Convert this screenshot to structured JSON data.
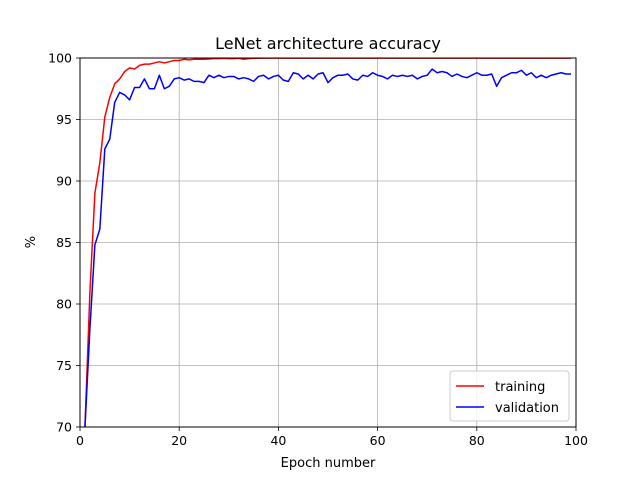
{
  "chart_data": {
    "type": "line",
    "title": "LeNet architecture accuracy",
    "xlabel": "Epoch number",
    "ylabel": "%",
    "xlim": [
      0,
      100
    ],
    "ylim": [
      70,
      100
    ],
    "xticks": [
      0,
      20,
      40,
      60,
      80,
      100
    ],
    "yticks": [
      70,
      75,
      80,
      85,
      90,
      95,
      100
    ],
    "grid": true,
    "legend_position": "lower-right",
    "x": [
      1,
      2,
      3,
      4,
      5,
      6,
      7,
      8,
      9,
      10,
      11,
      12,
      13,
      14,
      15,
      16,
      17,
      18,
      19,
      20,
      21,
      22,
      23,
      24,
      25,
      26,
      27,
      28,
      29,
      30,
      31,
      32,
      33,
      34,
      35,
      36,
      37,
      38,
      39,
      40,
      41,
      42,
      43,
      44,
      45,
      46,
      47,
      48,
      49,
      50,
      51,
      52,
      53,
      54,
      55,
      56,
      57,
      58,
      59,
      60,
      61,
      62,
      63,
      64,
      65,
      66,
      67,
      68,
      69,
      70,
      71,
      72,
      73,
      74,
      75,
      76,
      77,
      78,
      79,
      80,
      81,
      82,
      83,
      84,
      85,
      86,
      87,
      88,
      89,
      90,
      91,
      92,
      93,
      94,
      95,
      96,
      97,
      98,
      99
    ],
    "series": [
      {
        "name": "training",
        "color": "#ff0000",
        "values": [
          70,
          81,
          89,
          91.5,
          95.2,
          96.8,
          97.9,
          98.3,
          98.9,
          99.2,
          99.1,
          99.4,
          99.5,
          99.5,
          99.6,
          99.7,
          99.6,
          99.7,
          99.8,
          99.8,
          99.9,
          99.85,
          99.9,
          99.9,
          99.9,
          99.92,
          99.95,
          99.95,
          99.97,
          99.95,
          99.95,
          99.98,
          99.9,
          99.95,
          99.98,
          99.98,
          99.99,
          99.99,
          99.99,
          99.99,
          99.99,
          99.99,
          99.99,
          99.99,
          99.99,
          99.99,
          99.99,
          99.99,
          99.99,
          99.99,
          99.99,
          99.99,
          99.99,
          99.99,
          99.99,
          99.99,
          99.99,
          99.99,
          99.99,
          99.99,
          99.99,
          99.99,
          99.99,
          99.99,
          99.99,
          99.99,
          99.99,
          99.99,
          99.99,
          99.99,
          99.99,
          99.99,
          99.99,
          99.99,
          99.99,
          99.99,
          99.99,
          99.99,
          99.99,
          99.99,
          99.99,
          99.99,
          99.99,
          99.99,
          99.99,
          99.99,
          99.99,
          99.99,
          99.99,
          99.99,
          99.99,
          99.99,
          99.99,
          99.99,
          99.99,
          99.99,
          99.99,
          99.99,
          99.99
        ]
      },
      {
        "name": "validation",
        "color": "#0000ff",
        "values": [
          70,
          78,
          84.8,
          86.1,
          92.6,
          93.4,
          96.4,
          97.2,
          97.0,
          96.6,
          97.6,
          97.6,
          98.3,
          97.5,
          97.5,
          98.6,
          97.5,
          97.7,
          98.3,
          98.4,
          98.2,
          98.3,
          98.1,
          98.1,
          98.0,
          98.6,
          98.4,
          98.6,
          98.4,
          98.5,
          98.5,
          98.3,
          98.4,
          98.3,
          98.1,
          98.5,
          98.6,
          98.3,
          98.5,
          98.6,
          98.2,
          98.1,
          98.8,
          98.7,
          98.3,
          98.6,
          98.3,
          98.7,
          98.8,
          98.0,
          98.4,
          98.6,
          98.6,
          98.7,
          98.3,
          98.2,
          98.6,
          98.5,
          98.8,
          98.6,
          98.5,
          98.3,
          98.6,
          98.5,
          98.6,
          98.5,
          98.6,
          98.3,
          98.5,
          98.6,
          99.1,
          98.8,
          98.9,
          98.8,
          98.5,
          98.7,
          98.5,
          98.4,
          98.6,
          98.8,
          98.6,
          98.6,
          98.7,
          97.7,
          98.4,
          98.6,
          98.8,
          98.8,
          99.0,
          98.6,
          98.8,
          98.4,
          98.6,
          98.4,
          98.6,
          98.7,
          98.8,
          98.7,
          98.7
        ]
      }
    ]
  }
}
